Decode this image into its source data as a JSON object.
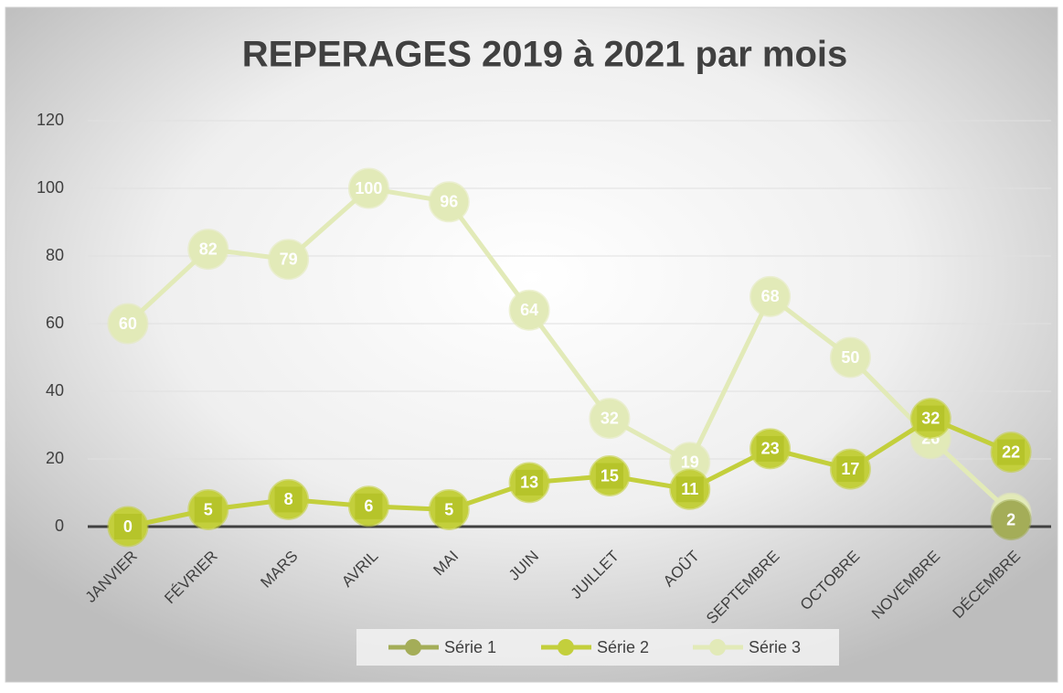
{
  "chart_data": {
    "type": "line",
    "title": "REPERAGES 2019 à 2021 par mois",
    "categories": [
      "JANVIER",
      "FÉVRIER",
      "MARS",
      "AVRIL",
      "MAI",
      "JUIN",
      "JUILLET",
      "AOÛT",
      "SEPTEMBRE",
      "OCTOBRE",
      "NOVEMBRE",
      "DÉCEMBRE"
    ],
    "series": [
      {
        "name": "Série 1",
        "color": "#a4ad58",
        "values": [
          null,
          null,
          null,
          null,
          null,
          null,
          null,
          null,
          null,
          null,
          null,
          2
        ]
      },
      {
        "name": "Série 2",
        "color": "#c3cf3c",
        "values": [
          0,
          5,
          8,
          6,
          5,
          13,
          15,
          11,
          23,
          17,
          32,
          22
        ]
      },
      {
        "name": "Série 3",
        "color": "#e2eab8",
        "values": [
          60,
          82,
          79,
          100,
          96,
          64,
          32,
          19,
          68,
          50,
          26,
          4
        ]
      }
    ],
    "ylim": [
      0,
      120
    ],
    "yticks": [
      0,
      20,
      40,
      60,
      80,
      100,
      120
    ],
    "grid": true,
    "legend": "bottom"
  }
}
